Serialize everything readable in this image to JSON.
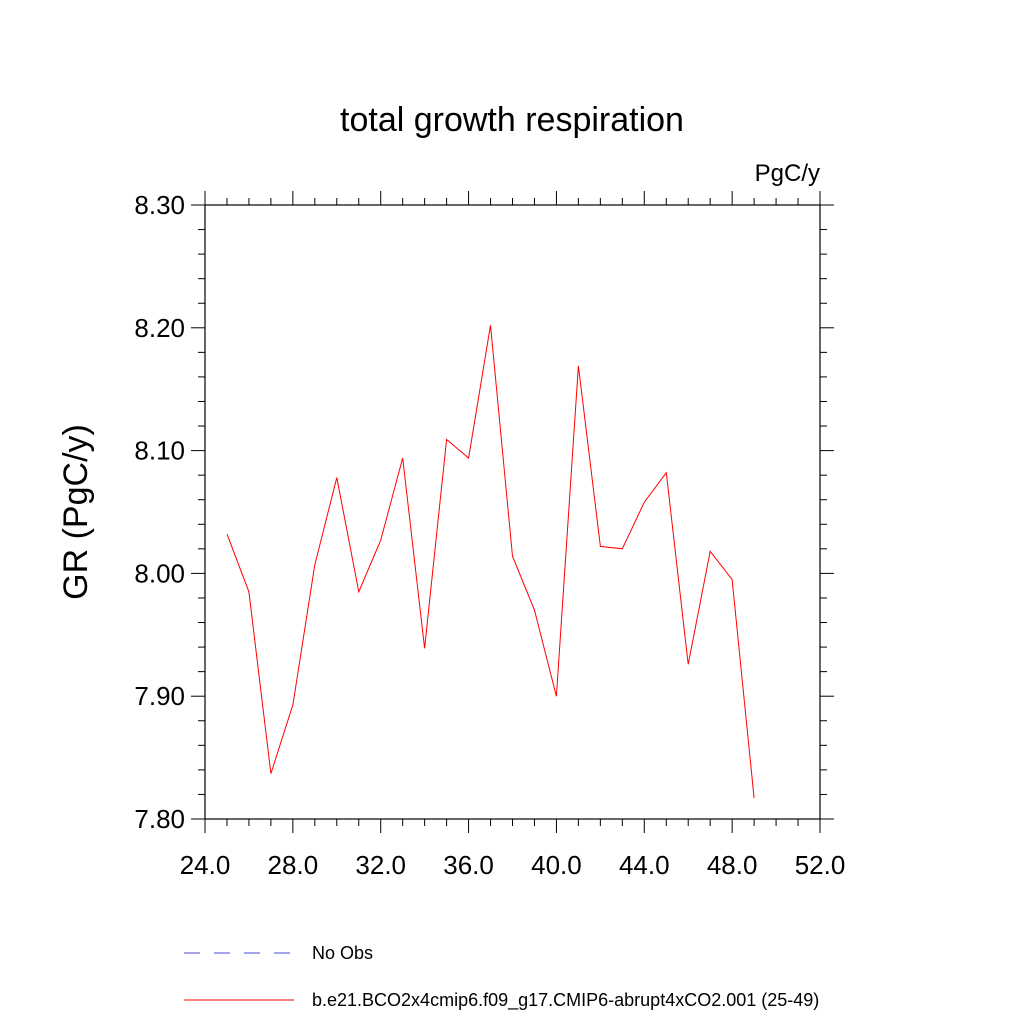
{
  "chart_data": {
    "type": "line",
    "title": "total growth respiration",
    "units_label": "PgC/y",
    "ylabel": "GR  (PgC/y)",
    "xlabel": "",
    "xlim": [
      24.0,
      52.0
    ],
    "ylim": [
      7.8,
      8.3
    ],
    "x_ticks": [
      "24.0",
      "28.0",
      "32.0",
      "36.0",
      "40.0",
      "44.0",
      "48.0",
      "52.0"
    ],
    "y_ticks": [
      "7.80",
      "7.90",
      "8.00",
      "8.10",
      "8.20",
      "8.30"
    ],
    "grid": false,
    "x": [
      25,
      26,
      27,
      28,
      29,
      30,
      31,
      32,
      33,
      34,
      35,
      36,
      37,
      38,
      39,
      40,
      41,
      42,
      43,
      44,
      45,
      46,
      47,
      48,
      49
    ],
    "series": [
      {
        "name": "b.e21.BCO2x4cmip6.f09_g17.CMIP6-abrupt4xCO2.001 (25-49)",
        "color": "#ff0000",
        "style": "solid",
        "values": [
          8.032,
          7.985,
          7.837,
          7.893,
          8.007,
          8.078,
          7.985,
          8.027,
          8.094,
          7.939,
          8.109,
          8.094,
          8.202,
          8.014,
          7.97,
          7.9,
          8.169,
          8.022,
          8.02,
          8.058,
          8.082,
          7.926,
          8.018,
          7.995,
          7.817
        ]
      }
    ],
    "legend": {
      "placement": "bottom",
      "entries": [
        {
          "label": "No Obs",
          "color": "#4a4ad0",
          "style": "dashed"
        },
        {
          "label": "b.e21.BCO2x4cmip6.f09_g17.CMIP6-abrupt4xCO2.001 (25-49)",
          "color": "#ff0000",
          "style": "solid"
        }
      ]
    }
  }
}
